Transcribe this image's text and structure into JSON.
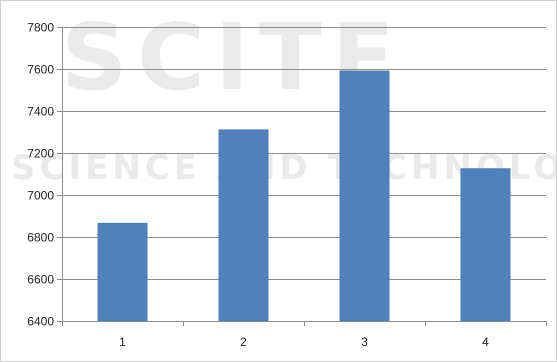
{
  "watermark": {
    "logo_text": "SCITE",
    "tagline": "SCIENCE AND TECHNOLOGY PUBLICATIONS"
  },
  "chart_data": {
    "type": "bar",
    "title": "",
    "xlabel": "",
    "ylabel": "",
    "categories": [
      "1",
      "2",
      "3",
      "4"
    ],
    "values": [
      6865,
      7310,
      7590,
      7125
    ],
    "ylim": [
      6400,
      7800
    ],
    "yticks": [
      6400,
      6600,
      6800,
      7000,
      7200,
      7400,
      7600,
      7800
    ],
    "grid": "horizontal",
    "legend": "none",
    "colors": {
      "bar": "#4f81bd",
      "bar_edge": "#4a7ab3",
      "grid": "#8c8c8c",
      "axis": "#8c8c8c"
    }
  }
}
